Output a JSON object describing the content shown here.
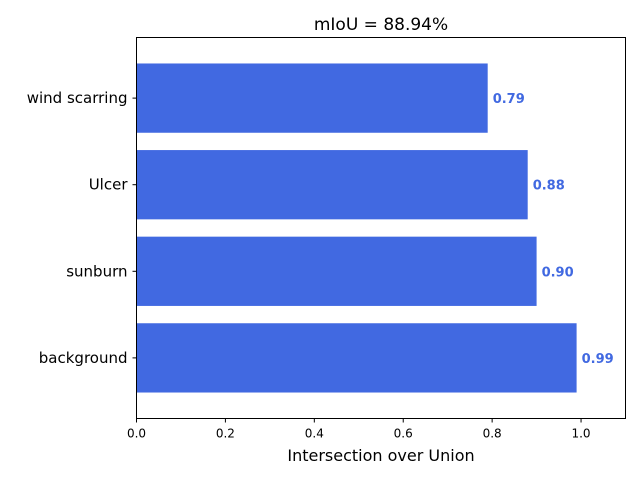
{
  "chart_data": {
    "type": "bar",
    "orientation": "horizontal",
    "title": "mIoU = 88.94%",
    "xlabel": "Intersection over Union",
    "ylabel": "",
    "categories": [
      "background",
      "sunburn",
      "Ulcer",
      "wind scarring"
    ],
    "values": [
      0.99,
      0.9,
      0.88,
      0.79
    ],
    "value_labels": [
      "0.99",
      "0.90",
      "0.88",
      "0.79"
    ],
    "xlim": [
      0,
      1.1
    ],
    "xticks": [
      "0.0",
      "0.2",
      "0.4",
      "0.6",
      "0.8",
      "1.0"
    ],
    "grid": false,
    "legend": "none",
    "bar_color": "#4169e1",
    "label_color": "#4169e1"
  }
}
